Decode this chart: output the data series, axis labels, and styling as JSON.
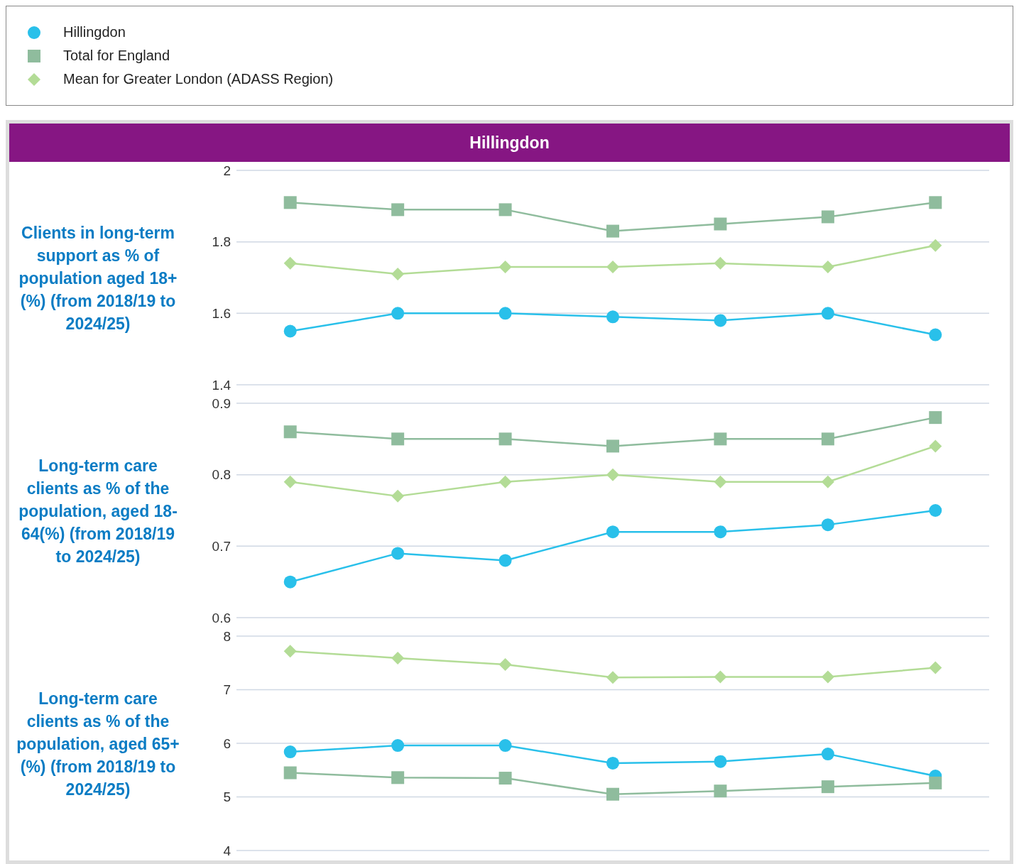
{
  "chart_data": [
    {
      "type": "line",
      "title": "Hillingdon",
      "ylabel": "Clients in long-term support as % of population aged 18+(%) (from 2018/19 to 2024/25)",
      "categories": [
        null,
        null,
        null,
        null,
        null,
        null,
        null
      ],
      "ylim": [
        1.4,
        2
      ],
      "yticks": [
        {
          "value": 1.4,
          "label": "1.4"
        },
        {
          "value": 1.6,
          "label": "1.6"
        },
        {
          "value": 1.8,
          "label": "1.8"
        },
        2
      ],
      "grid": "y",
      "tick_labels": "y",
      "legend": "top",
      "series": [
        {
          "name": "Hillingdon",
          "color": "#29c0ea",
          "marker": "circle",
          "values": [
            1.55,
            1.6,
            1.6,
            1.59,
            1.58,
            1.6,
            1.54
          ]
        },
        {
          "name": "Total for England",
          "color": "#8fbc9d",
          "marker": "square",
          "values": [
            1.91,
            1.89,
            1.89,
            1.83,
            1.85,
            1.87,
            1.91
          ]
        },
        {
          "name": "Mean for Greater London (ADASS Region)",
          "color": "#b3dc96",
          "marker": "diamond",
          "values": [
            1.74,
            1.71,
            1.73,
            1.73,
            1.74,
            1.73,
            1.79
          ]
        }
      ]
    },
    {
      "type": "line",
      "ylabel": "Long-term care clients as % of the population, aged 18-64(%) (from 2018/19 to 2024/25)",
      "categories": [
        null,
        null,
        null,
        null,
        null,
        null,
        null
      ],
      "ylim": [
        0.6,
        0.9
      ],
      "yticks": [
        0.6,
        0.7,
        0.8,
        0.9
      ],
      "grid": "y",
      "tick_labels": "y",
      "series": [
        {
          "color": "#29c0ea",
          "marker": "circle",
          "values": [
            0.65,
            0.69,
            0.68,
            0.72,
            0.72,
            0.73,
            0.75
          ]
        },
        {
          "color": "#8fbc9d",
          "marker": "square",
          "values": [
            0.86,
            0.85,
            0.85,
            0.84,
            0.85,
            0.85,
            0.88
          ]
        },
        {
          "color": "#b3dc96",
          "marker": "diamond",
          "values": [
            0.79,
            0.77,
            0.79,
            0.8,
            0.79,
            0.79,
            0.84
          ]
        }
      ]
    },
    {
      "type": "line",
      "ylabel": "Long-term care clients as % of the population, aged 65+(%) (from 2018/19 to 2024/25)",
      "categories": [
        null,
        null,
        null,
        null,
        null,
        null,
        null
      ],
      "ylim": [
        4,
        8
      ],
      "yticks": [
        4,
        5,
        6,
        7,
        8
      ],
      "grid": "y",
      "tick_labels": "y",
      "series": [
        {
          "color": "#29c0ea",
          "marker": "circle",
          "values": [
            5.84,
            5.96,
            5.96,
            5.63,
            5.66,
            5.8,
            5.39
          ]
        },
        {
          "color": "#8fbc9d",
          "marker": "square",
          "values": [
            5.45,
            5.36,
            5.35,
            5.05,
            5.11,
            5.19,
            5.26
          ]
        },
        {
          "color": "#b3dc96",
          "marker": "diamond",
          "values": [
            7.72,
            7.59,
            7.47,
            7.23,
            7.24,
            7.24,
            7.41
          ]
        }
      ]
    }
  ]
}
